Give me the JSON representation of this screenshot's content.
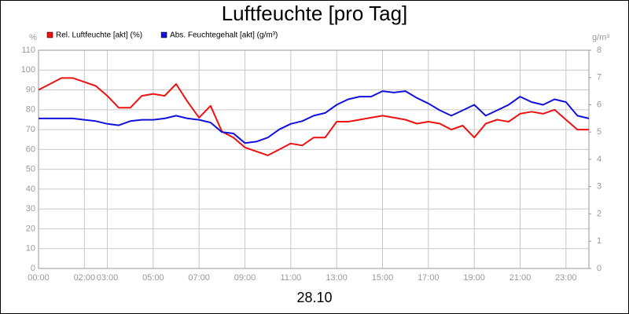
{
  "chart_data": {
    "type": "line",
    "title": "Luftfeuchte [pro Tag]",
    "xlabel": "28.10",
    "ylabel": "%",
    "y2label": "g/m³",
    "x": [
      0,
      0.5,
      1,
      1.5,
      2,
      2.5,
      3,
      3.5,
      4,
      4.5,
      5,
      5.5,
      6,
      6.5,
      7,
      7.5,
      8,
      8.5,
      9,
      9.5,
      10,
      10.5,
      11,
      11.5,
      12,
      12.5,
      13,
      13.5,
      14,
      14.5,
      15,
      15.5,
      16,
      16.5,
      17,
      17.5,
      18,
      18.5,
      19,
      19.5,
      20,
      20.5,
      21,
      21.5,
      22,
      22.5,
      23,
      23.5,
      24
    ],
    "series": [
      {
        "name": "Rel. Luftfeuchte [akt] (%)",
        "color": "#ee1111",
        "values": [
          90,
          93,
          96,
          96,
          94,
          92,
          87,
          81,
          81,
          87,
          88,
          87,
          93,
          84,
          76,
          82,
          69,
          66,
          61,
          59,
          57,
          60,
          63,
          62,
          66,
          66,
          74,
          74,
          75,
          76,
          77,
          76,
          75,
          73,
          74,
          73,
          70,
          72,
          66,
          73,
          75,
          74,
          78,
          79,
          78,
          80,
          75,
          70,
          70
        ]
      },
      {
        "name": "Abs. Feuchtegehalt [akt] (g/m³)",
        "color": "#1111dd",
        "axis": "y2",
        "values": [
          5.5,
          5.5,
          5.5,
          5.5,
          5.45,
          5.4,
          5.3,
          5.25,
          5.4,
          5.45,
          5.45,
          5.5,
          5.6,
          5.5,
          5.45,
          5.35,
          5.0,
          4.95,
          4.6,
          4.65,
          4.8,
          5.1,
          5.3,
          5.4,
          5.6,
          5.7,
          6.0,
          6.2,
          6.3,
          6.3,
          6.5,
          6.45,
          6.5,
          6.25,
          6.05,
          5.8,
          5.6,
          5.8,
          6.0,
          5.6,
          5.8,
          6.0,
          6.3,
          6.1,
          6.0,
          6.2,
          6.1,
          5.6,
          5.5
        ]
      }
    ],
    "xlim": [
      0,
      24
    ],
    "xticks": [
      {
        "value": 0,
        "label": "00:00"
      },
      {
        "value": 2,
        "label": "02:00"
      },
      {
        "value": 3,
        "label": "03:00"
      },
      {
        "value": 5,
        "label": "05:00"
      },
      {
        "value": 7,
        "label": "07:00"
      },
      {
        "value": 9,
        "label": "09:00"
      },
      {
        "value": 11,
        "label": "11:00"
      },
      {
        "value": 13,
        "label": "13:00"
      },
      {
        "value": 15,
        "label": "15:00"
      },
      {
        "value": 17,
        "label": "17:00"
      },
      {
        "value": 19,
        "label": "19:00"
      },
      {
        "value": 21,
        "label": "21:00"
      },
      {
        "value": 23,
        "label": "23:00"
      }
    ],
    "ylim": [
      0,
      110
    ],
    "yticks": [
      0,
      10,
      20,
      30,
      40,
      50,
      60,
      70,
      80,
      90,
      100,
      110
    ],
    "y2lim": [
      0,
      8
    ],
    "y2ticks": [
      0,
      1,
      2,
      3,
      4,
      5,
      6,
      7,
      8
    ],
    "grid": true
  }
}
